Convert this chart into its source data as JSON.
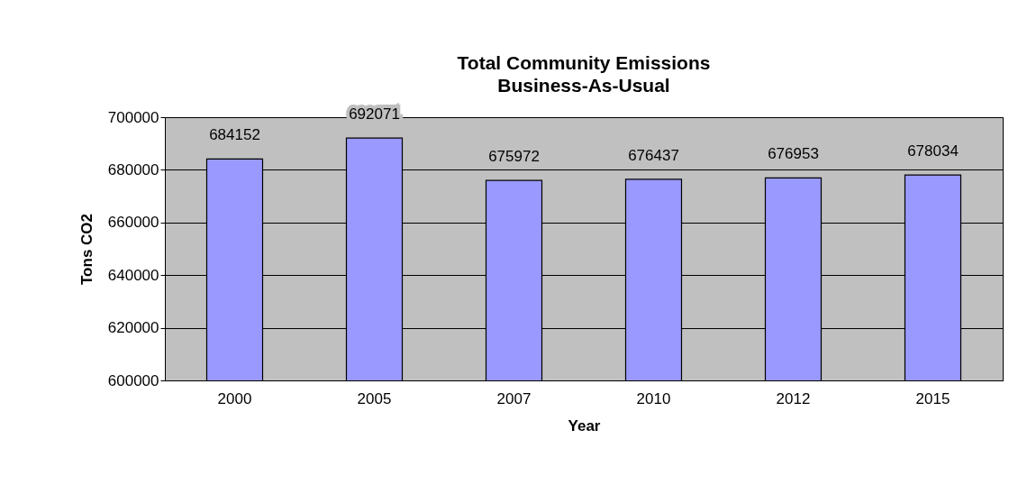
{
  "chart_data": {
    "type": "bar",
    "title": "Total Community Emissions",
    "subtitle": "Business-As-Usual",
    "xlabel": "Year",
    "ylabel": "Tons CO2",
    "categories": [
      "2000",
      "2005",
      "2007",
      "2010",
      "2012",
      "2015"
    ],
    "values": [
      684152,
      692071,
      675972,
      676437,
      676953,
      678034
    ],
    "color": "#9999ff",
    "ylim": [
      600000,
      700000
    ],
    "yticks": [
      600000,
      620000,
      640000,
      660000,
      680000,
      700000
    ],
    "grid": "y",
    "data_labels": true,
    "legend": false
  }
}
